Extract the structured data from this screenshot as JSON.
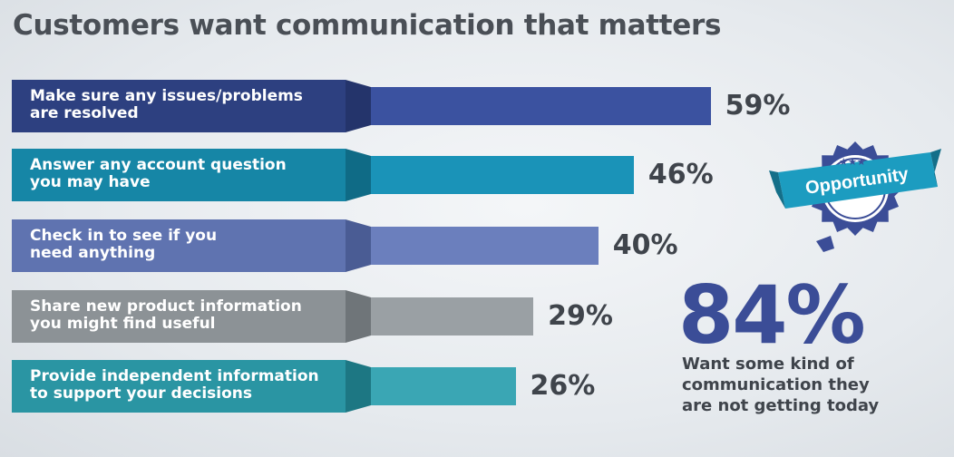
{
  "title": "Customers want communication that matters",
  "chart_data": {
    "type": "bar",
    "orientation": "horizontal",
    "categories": [
      [
        "Make sure any issues/problems",
        "are resolved"
      ],
      [
        "Answer any account question",
        "you may have"
      ],
      [
        "Check in to see if you",
        "need anything"
      ],
      [
        "Share new product information",
        "you might find useful"
      ],
      [
        "Provide independent information",
        "to support your decisions"
      ]
    ],
    "values": [
      59,
      46,
      40,
      29,
      26
    ],
    "value_labels": [
      "59%",
      "46%",
      "40%",
      "29%",
      "26%"
    ],
    "unit": "%",
    "colors": [
      {
        "label": "#2d4080",
        "wedge": "#24346b",
        "bar": "#3b52a0"
      },
      {
        "label": "#1686a6",
        "wedge": "#0f6b86",
        "bar": "#1a93b8"
      },
      {
        "label": "#5f73b0",
        "wedge": "#4a5c94",
        "bar": "#6b7fbd"
      },
      {
        "label": "#8c9296",
        "wedge": "#6f7579",
        "bar": "#9aa0a4"
      },
      {
        "label": "#2a95a3",
        "wedge": "#1d7783",
        "bar": "#3aa6b4"
      }
    ]
  },
  "callout": {
    "badge_text": "Opportunity",
    "badge_stars": "★★★",
    "badge_color": "#3b4d97",
    "ribbon_color": "#1c9cc0",
    "big_value": "84%",
    "description_lines": [
      "Want some kind of",
      "communication they",
      "are not getting today"
    ]
  }
}
